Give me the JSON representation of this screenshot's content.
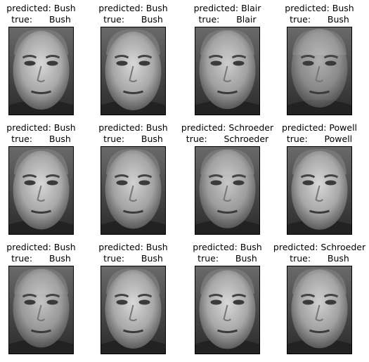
{
  "panels": [
    {
      "predicted": "predicted: Bush",
      "true": "true:      Bush"
    },
    {
      "predicted": "predicted: Bush",
      "true": "true:      Bush"
    },
    {
      "predicted": "predicted: Blair",
      "true": "true:      Blair"
    },
    {
      "predicted": "predicted: Bush",
      "true": "true:      Bush"
    },
    {
      "predicted": "predicted: Bush",
      "true": "true:      Bush"
    },
    {
      "predicted": "predicted: Bush",
      "true": "true:      Bush"
    },
    {
      "predicted": "predicted: Schroeder",
      "true": "true:      Schroeder"
    },
    {
      "predicted": "predicted: Powell",
      "true": "true:      Powell"
    },
    {
      "predicted": "predicted: Bush",
      "true": "true:      Bush"
    },
    {
      "predicted": "predicted: Bush",
      "true": "true:      Bush"
    },
    {
      "predicted": "predicted: Bush",
      "true": "true:      Bush"
    },
    {
      "predicted": "predicted: Schroeder",
      "true": "true:      Bush"
    }
  ]
}
